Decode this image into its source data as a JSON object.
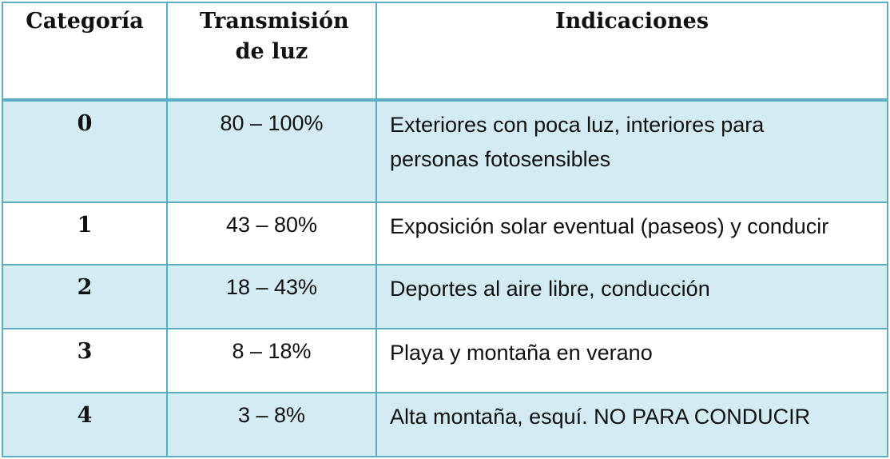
{
  "table": {
    "headers": {
      "category": "Categoría",
      "transmission": "Transmisión de luz",
      "indications": "Indicaciones"
    },
    "rows": [
      {
        "category": "0",
        "transmission": "80 – 100%",
        "indications": "Exteriores con poca luz, interiores para personas fotosensibles"
      },
      {
        "category": "1",
        "transmission": "43 – 80%",
        "indications": "Exposición solar eventual (paseos) y conducir"
      },
      {
        "category": "2",
        "transmission": "18 – 43%",
        "indications": "Deportes al aire libre, conducción"
      },
      {
        "category": "3",
        "transmission": "8 – 18%",
        "indications": "Playa y montaña en verano"
      },
      {
        "category": "4",
        "transmission": "3 – 8%",
        "indications": "Alta montaña, esquí. NO PARA CONDUCIR"
      }
    ],
    "colors": {
      "border": "#5aaec4",
      "band": "#d3ebf2",
      "text": "#111111"
    }
  }
}
